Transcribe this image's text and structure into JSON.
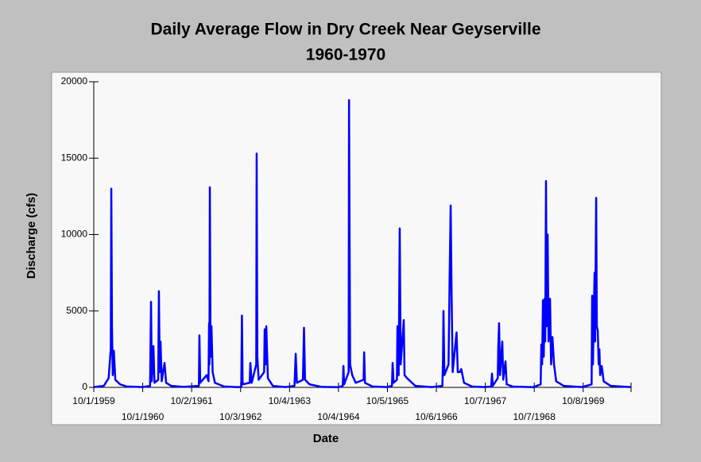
{
  "chart_data": {
    "type": "line",
    "title": "Daily Average Flow in Dry Creek Near Geyserville",
    "subtitle": "1960-1970",
    "x_label": "Date",
    "y_label": "Discharge (cfs)",
    "xlim": [
      "1959-10-01",
      "1970-10-01"
    ],
    "xticks": [
      {
        "value": "1959-10-01",
        "label": "10/1/1959"
      },
      {
        "value": "1960-10-01",
        "label": "10/1/1960"
      },
      {
        "value": "1961-10-02",
        "label": "10/2/1961"
      },
      {
        "value": "1962-10-03",
        "label": "10/3/1962"
      },
      {
        "value": "1963-10-04",
        "label": "10/4/1963"
      },
      {
        "value": "1964-10-04",
        "label": "10/4/1964"
      },
      {
        "value": "1965-10-05",
        "label": "10/5/1965"
      },
      {
        "value": "1966-10-06",
        "label": "10/6/1966"
      },
      {
        "value": "1967-10-07",
        "label": "10/7/1967"
      },
      {
        "value": "1968-10-07",
        "label": "10/7/1968"
      },
      {
        "value": "1969-10-08",
        "label": "10/8/1969"
      }
    ],
    "ylim": [
      0,
      20000
    ],
    "yticks": [
      0,
      5000,
      10000,
      15000,
      20000
    ],
    "x": [
      "1959-10-01",
      "1959-12-15",
      "1960-01-20",
      "1960-02-05",
      "1960-02-09",
      "1960-02-14",
      "1960-02-20",
      "1960-02-28",
      "1960-03-10",
      "1960-04-15",
      "1960-06-01",
      "1960-10-01",
      "1960-11-25",
      "1960-12-02",
      "1960-12-08",
      "1960-12-20",
      "1960-12-28",
      "1961-01-25",
      "1961-01-30",
      "1961-02-05",
      "1961-02-11",
      "1961-02-20",
      "1961-03-13",
      "1961-03-25",
      "1961-05-01",
      "1961-08-01",
      "1961-11-25",
      "1961-11-29",
      "1961-12-05",
      "1962-01-22",
      "1962-02-05",
      "1962-02-09",
      "1962-02-12",
      "1962-02-15",
      "1962-02-20",
      "1962-02-27",
      "1962-03-08",
      "1962-03-25",
      "1962-06-01",
      "1962-09-01",
      "1962-10-08",
      "1962-10-13",
      "1962-10-18",
      "1962-12-10",
      "1962-12-15",
      "1962-12-25",
      "1963-01-28",
      "1963-01-31",
      "1963-02-05",
      "1963-02-15",
      "1963-03-28",
      "1963-04-01",
      "1963-04-07",
      "1963-04-13",
      "1963-04-25",
      "1963-06-01",
      "1963-09-01",
      "1963-11-10",
      "1963-11-19",
      "1963-11-28",
      "1964-01-12",
      "1964-01-20",
      "1964-01-28",
      "1964-03-01",
      "1964-06-01",
      "1964-10-01",
      "1964-11-05",
      "1964-11-10",
      "1964-11-15",
      "1964-12-19",
      "1964-12-22",
      "1964-12-25",
      "1964-12-30",
      "1965-01-15",
      "1965-02-10",
      "1965-04-10",
      "1965-04-14",
      "1965-04-20",
      "1965-06-15",
      "1965-10-01",
      "1965-11-08",
      "1965-11-13",
      "1965-11-20",
      "1965-12-15",
      "1965-12-19",
      "1965-12-28",
      "1966-01-05",
      "1966-01-12",
      "1966-02-04",
      "1966-02-10",
      "1966-03-01",
      "1966-05-01",
      "1966-09-01",
      "1966-11-20",
      "1966-11-25",
      "1966-11-28",
      "1966-12-05",
      "1967-01-05",
      "1967-01-13",
      "1967-01-21",
      "1967-01-28",
      "1967-02-05",
      "1967-03-06",
      "1967-03-15",
      "1967-03-30",
      "1967-04-10",
      "1967-05-01",
      "1967-07-01",
      "1967-10-01",
      "1967-11-20",
      "1967-11-26",
      "1967-12-02",
      "1968-01-08",
      "1968-01-12",
      "1968-01-18",
      "1968-01-25",
      "1968-02-11",
      "1968-02-18",
      "1968-03-06",
      "1968-03-15",
      "1968-05-01",
      "1968-10-01",
      "1968-11-24",
      "1968-11-29",
      "1968-12-05",
      "1968-12-11",
      "1968-12-17",
      "1968-12-23",
      "1968-12-28",
      "1969-01-03",
      "1969-01-08",
      "1969-01-15",
      "1969-01-22",
      "1969-02-02",
      "1969-02-10",
      "1969-02-20",
      "1969-03-04",
      "1969-03-20",
      "1969-05-15",
      "1969-10-01",
      "1969-12-10",
      "1969-12-14",
      "1969-12-20",
      "1970-01-01",
      "1970-01-05",
      "1970-01-13",
      "1970-01-18",
      "1970-01-25",
      "1970-02-01",
      "1970-02-06",
      "1970-02-12",
      "1970-02-24",
      "1970-03-10",
      "1970-05-01",
      "1970-09-30"
    ],
    "series": [
      {
        "name": "Discharge",
        "color": "#0000ff",
        "values": [
          20,
          100,
          600,
          2500,
          13000,
          4000,
          800,
          2400,
          500,
          200,
          60,
          20,
          100,
          5600,
          400,
          2700,
          300,
          500,
          6300,
          1000,
          3000,
          400,
          1600,
          300,
          100,
          30,
          100,
          3400,
          300,
          800,
          400,
          4200,
          1500,
          13100,
          2000,
          4000,
          1000,
          300,
          60,
          20,
          20,
          4700,
          200,
          300,
          1600,
          300,
          1500,
          15300,
          2000,
          500,
          1000,
          3800,
          1500,
          4000,
          600,
          100,
          20,
          100,
          2200,
          300,
          500,
          3900,
          500,
          200,
          30,
          15,
          100,
          1400,
          200,
          1000,
          18800,
          11700,
          1500,
          800,
          300,
          500,
          2300,
          300,
          60,
          20,
          100,
          1600,
          300,
          500,
          4000,
          800,
          10400,
          1500,
          4400,
          800,
          600,
          100,
          20,
          100,
          2000,
          5000,
          800,
          1500,
          7000,
          11900,
          6000,
          1000,
          3600,
          1000,
          1000,
          1200,
          300,
          50,
          20,
          50,
          900,
          100,
          600,
          2600,
          4200,
          800,
          3000,
          500,
          1700,
          200,
          50,
          15,
          200,
          2800,
          1500,
          5700,
          2000,
          5800,
          3000,
          13500,
          4000,
          10000,
          3000,
          5800,
          1500,
          3300,
          1500,
          400,
          100,
          20,
          200,
          6000,
          1500,
          7500,
          3000,
          12400,
          4000,
          3700,
          1500,
          2500,
          800,
          1400,
          400,
          100,
          20
        ]
      }
    ]
  }
}
